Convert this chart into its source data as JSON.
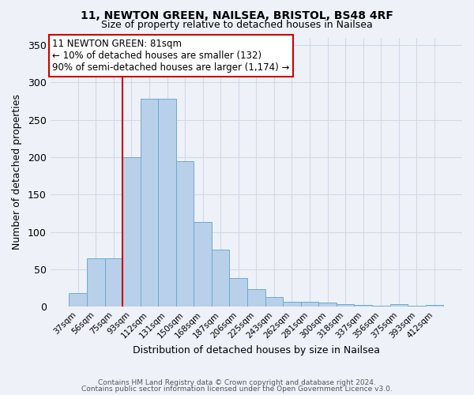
{
  "title_line1": "11, NEWTON GREEN, NAILSEA, BRISTOL, BS48 4RF",
  "title_line2": "Size of property relative to detached houses in Nailsea",
  "xlabel": "Distribution of detached houses by size in Nailsea",
  "ylabel": "Number of detached properties",
  "bar_labels": [
    "37sqm",
    "56sqm",
    "75sqm",
    "93sqm",
    "112sqm",
    "131sqm",
    "150sqm",
    "168sqm",
    "187sqm",
    "206sqm",
    "225sqm",
    "243sqm",
    "262sqm",
    "281sqm",
    "300sqm",
    "318sqm",
    "337sqm",
    "356sqm",
    "375sqm",
    "393sqm",
    "412sqm"
  ],
  "bar_values": [
    18,
    65,
    65,
    200,
    278,
    278,
    195,
    113,
    76,
    38,
    24,
    13,
    7,
    7,
    6,
    4,
    2,
    1,
    4,
    1,
    2
  ],
  "bar_color": "#b8d0ea",
  "bar_edge_color": "#6aaad4",
  "vline_x_index": 2,
  "vline_color": "#cc0000",
  "annotation_title": "11 NEWTON GREEN: 81sqm",
  "annotation_line1": "← 10% of detached houses are smaller (132)",
  "annotation_line2": "90% of semi-detached houses are larger (1,174) →",
  "annotation_box_color": "#ffffff",
  "annotation_box_edge": "#cc0000",
  "ylim_max": 360,
  "yticks": [
    0,
    50,
    100,
    150,
    200,
    250,
    300,
    350
  ],
  "footer_line1": "Contains HM Land Registry data © Crown copyright and database right 2024.",
  "footer_line2": "Contains public sector information licensed under the Open Government Licence v3.0.",
  "background_color": "#eef2f8",
  "grid_color": "#d0d8e8",
  "plot_bg_color": "#eef2f8"
}
